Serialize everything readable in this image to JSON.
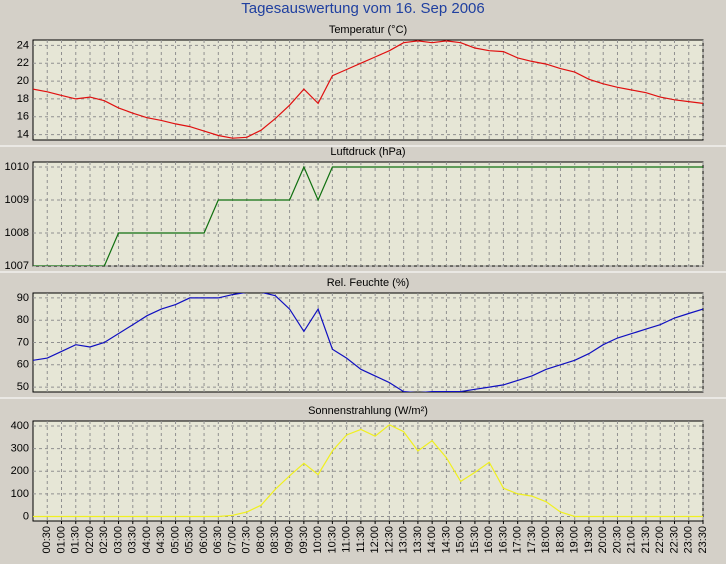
{
  "title": "Tagesauswertung vom 16. Sep 2006",
  "chart_data": [
    {
      "type": "line",
      "title": "Temperatur (°C)",
      "color": "#e01010",
      "ylim": [
        13.4,
        24.6
      ],
      "yticks": [
        14,
        16,
        18,
        20,
        22,
        24
      ],
      "grid": true,
      "values": [
        19.1,
        18.8,
        18.4,
        18.0,
        18.2,
        17.8,
        17.0,
        16.4,
        15.9,
        15.6,
        15.2,
        14.9,
        14.4,
        13.9,
        13.6,
        13.7,
        14.5,
        15.8,
        17.3,
        19.1,
        17.5,
        20.6,
        21.3,
        22.0,
        22.7,
        23.4,
        24.3,
        24.5,
        24.3,
        24.5,
        24.3,
        23.7,
        23.4,
        23.3,
        22.6,
        22.2,
        21.9,
        21.4,
        21.0,
        20.2,
        19.7,
        19.3,
        19.0,
        18.7,
        18.2,
        17.9,
        17.7,
        17.5
      ]
    },
    {
      "type": "line",
      "title": "Luftdruck (hPa)",
      "color": "#107010",
      "ylim": [
        1007,
        1010.15
      ],
      "yticks": [
        1007,
        1008,
        1009,
        1010
      ],
      "grid": true,
      "values": [
        1007,
        1007,
        1007,
        1007,
        1007,
        1007,
        1008,
        1008,
        1008,
        1008,
        1008,
        1008,
        1008,
        1009,
        1009,
        1009,
        1009,
        1009,
        1009,
        1010,
        1009,
        1010,
        1010,
        1010,
        1010,
        1010,
        1010,
        1010,
        1010,
        1010,
        1010,
        1010,
        1010,
        1010,
        1010,
        1010,
        1010,
        1010,
        1010,
        1010,
        1010,
        1010,
        1010,
        1010,
        1010,
        1010,
        1010,
        1010
      ]
    },
    {
      "type": "line",
      "title": "Rel. Feuchte (%)",
      "color": "#1010c0",
      "ylim": [
        47.8,
        92.2
      ],
      "yticks": [
        50,
        60,
        70,
        80,
        90
      ],
      "grid": true,
      "values": [
        62,
        63,
        66,
        69,
        68,
        70,
        74,
        78,
        82,
        85,
        87,
        90,
        90,
        90,
        91.5,
        92.5,
        92.5,
        91,
        85,
        75,
        85,
        67,
        63,
        58,
        55,
        52,
        48,
        47.5,
        48,
        48,
        48,
        49,
        50,
        51,
        53,
        55,
        58,
        60,
        62,
        65,
        69,
        72,
        74,
        76,
        78,
        81,
        83,
        85
      ]
    },
    {
      "type": "line",
      "title": "Sonnenstrahlung (W/m²)",
      "color": "#f0f020",
      "ylim": [
        -20,
        422
      ],
      "yticks": [
        0,
        100,
        200,
        300,
        400
      ],
      "grid": true,
      "values": [
        0,
        0,
        0,
        0,
        0,
        0,
        0,
        0,
        0,
        0,
        0,
        0,
        0,
        0,
        5,
        20,
        50,
        120,
        180,
        235,
        185,
        290,
        360,
        385,
        355,
        405,
        375,
        290,
        335,
        260,
        155,
        195,
        240,
        125,
        100,
        90,
        65,
        20,
        0,
        0,
        0,
        0,
        0,
        0,
        0,
        0,
        0,
        0
      ],
      "categories": [
        null,
        "00:30",
        "01:00",
        "01:30",
        "02:00",
        "02:30",
        "03:00",
        "03:30",
        "04:00",
        "04:30",
        "05:00",
        "05:30",
        "06:00",
        "06:30",
        "07:00",
        "07:30",
        "08:00",
        "08:30",
        "09:00",
        "09:30",
        "10:00",
        "10:30",
        "11:00",
        "11:30",
        "12:00",
        "12:30",
        "13:00",
        "13:30",
        "14:00",
        "14:30",
        "15:00",
        "15:30",
        "16:00",
        "16:30",
        "17:00",
        "17:30",
        "18:00",
        "18:30",
        "19:00",
        "19:30",
        "20:00",
        "20:30",
        "21:00",
        "21:30",
        "22:00",
        "22:30",
        "23:00",
        "23:30"
      ]
    }
  ]
}
